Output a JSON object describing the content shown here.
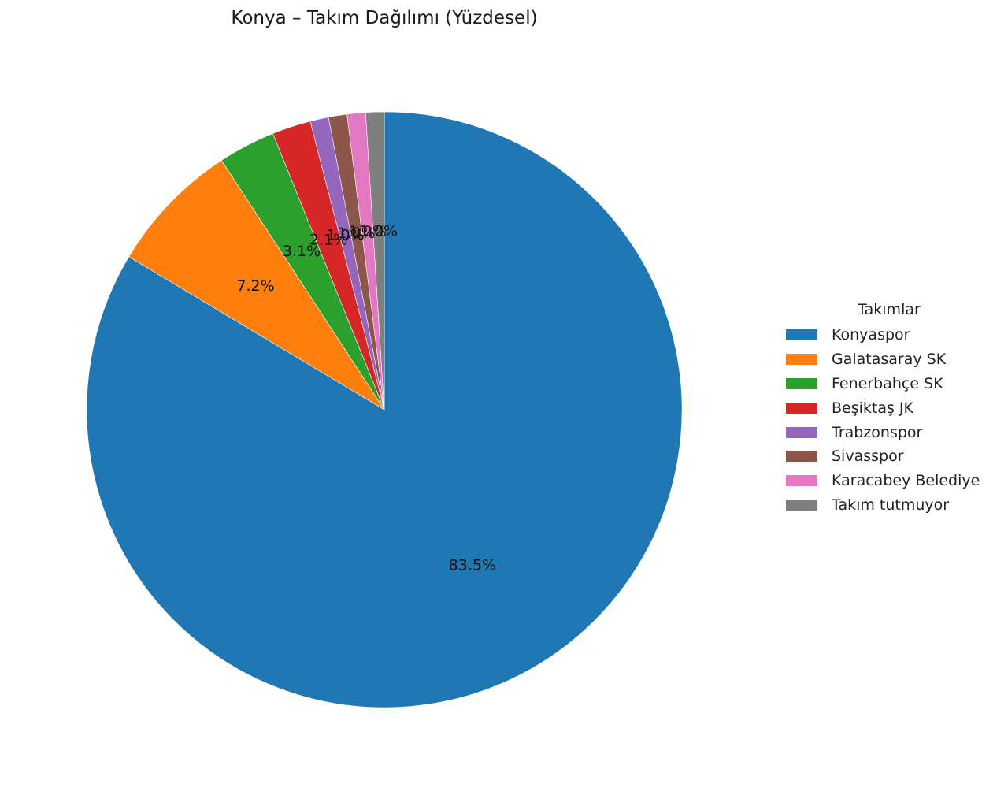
{
  "chart_data": {
    "type": "pie",
    "title": "Konya – Takım Dağılımı (Yüzdesel)",
    "legend_title": "Takımlar",
    "legend_position": "right",
    "start_angle_deg": 90,
    "direction": "clockwise",
    "slices": [
      {
        "label": "Konyaspor",
        "value": 83.5,
        "pct_label": "83.5%",
        "color": "#1f77b4"
      },
      {
        "label": "Galatasaray SK",
        "value": 7.2,
        "pct_label": "7.2%",
        "color": "#ff7f0e"
      },
      {
        "label": "Fenerbahçe SK",
        "value": 3.1,
        "pct_label": "3.1%",
        "color": "#2ca02c"
      },
      {
        "label": "Beşiktaş JK",
        "value": 2.1,
        "pct_label": "2.1%",
        "color": "#d62728"
      },
      {
        "label": "Trabzonspor",
        "value": 1.0,
        "pct_label": "1.0%",
        "color": "#9467bd"
      },
      {
        "label": "Sivasspor",
        "value": 1.0,
        "pct_label": "1.0%",
        "color": "#8c564b"
      },
      {
        "label": "Karacabey Belediye",
        "value": 1.0,
        "pct_label": "1.0%",
        "color": "#e377c2"
      },
      {
        "label": "Takım tutmuyor",
        "value": 1.0,
        "pct_label": "1.0%",
        "color": "#7f7f7f"
      }
    ]
  }
}
